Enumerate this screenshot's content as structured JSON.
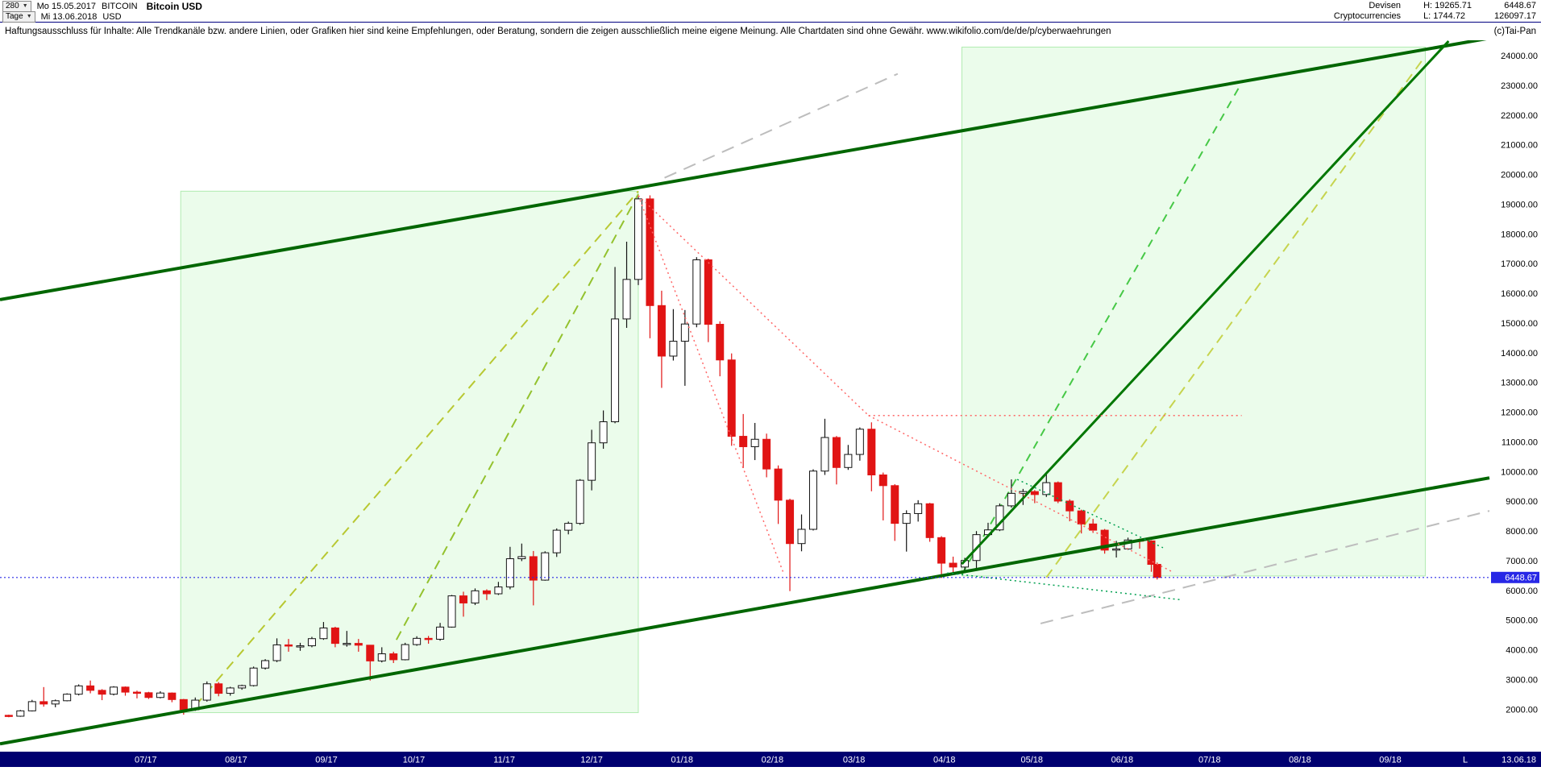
{
  "header": {
    "bars_count": "280",
    "date_from_label": "Mo 15.05.2017",
    "symbol": "BITCOIN",
    "title": "Bitcoin USD",
    "period_label": "Tage",
    "date_to_label": "Mi 13.06.2018",
    "currency": "USD",
    "category_line1": "Devisen",
    "category_line2": "Cryptocurrencies",
    "high_label": "H: 19265.71",
    "low_label": "L: 1744.72",
    "last_price_label": "6448.67",
    "secondary_value": "126097.17"
  },
  "disclaimer": {
    "text": "Haftungsausschluss für Inhalte: Alle Trendkanäle bzw. andere Linien, oder Grafiken hier sind keine Empfehlungen, oder Beratung, sondern die zeigen ausschließlich meine eigene Meinung. Alle Chartdaten sind ohne Gewähr.   www.wikifolio.com/de/de/p/cyberwaehrungen",
    "copyright": "(c)Tai-Pan"
  },
  "chart_data": {
    "type": "candlestick",
    "title": "Bitcoin USD",
    "high": 19265.71,
    "low": 1744.72,
    "last_price": 6448.67,
    "last_price_label": "6448.67",
    "x_axis": {
      "start": "2017-05-12",
      "end": "2018-10-05",
      "end_date_label": "13.06.18",
      "last_marker": "L",
      "month_ticks": [
        {
          "label": "07/17",
          "date": "2017-07-01"
        },
        {
          "label": "08/17",
          "date": "2017-08-01"
        },
        {
          "label": "09/17",
          "date": "2017-09-01"
        },
        {
          "label": "10/17",
          "date": "2017-10-01"
        },
        {
          "label": "11/17",
          "date": "2017-11-01"
        },
        {
          "label": "12/17",
          "date": "2017-12-01"
        },
        {
          "label": "01/18",
          "date": "2018-01-01"
        },
        {
          "label": "02/18",
          "date": "2018-02-01"
        },
        {
          "label": "03/18",
          "date": "2018-03-01"
        },
        {
          "label": "04/18",
          "date": "2018-04-01"
        },
        {
          "label": "05/18",
          "date": "2018-05-01"
        },
        {
          "label": "06/18",
          "date": "2018-06-01"
        },
        {
          "label": "07/18",
          "date": "2018-07-01"
        },
        {
          "label": "08/18",
          "date": "2018-08-01"
        },
        {
          "label": "09/18",
          "date": "2018-09-01"
        }
      ]
    },
    "y_axis": {
      "tick_min": 2000,
      "tick_max": 24000,
      "tick_step": 1000,
      "side": "right",
      "label_decimals": 2
    },
    "colors": {
      "up_fill": "#ffffff",
      "up_stroke": "#141414",
      "down": "#e11414",
      "last_price": "#2828e6",
      "axis_text": "#000000",
      "axis_bar_bg": "#000070",
      "axis_bar_text": "#ffffff",
      "channel": "#006600"
    },
    "overlays": {
      "regions": [
        {
          "name": "uptrend-2017",
          "from_date": "2017-07-13",
          "to_date": "2017-12-17",
          "price_top": 19450,
          "price_bottom": 1900,
          "fill": "rgba(144,238,144,0.18)",
          "stroke": "rgba(120,220,120,0.55)"
        },
        {
          "name": "projection-2018",
          "from_date": "2018-04-07",
          "to_date": "2018-09-13",
          "price_top": 24300,
          "price_bottom": 6500,
          "fill": "rgba(144,238,144,0.18)",
          "stroke": "rgba(120,220,120,0.55)"
        }
      ],
      "lines": [
        {
          "name": "upper-channel",
          "layer": "front",
          "from": [
            "2017-05-12",
            15800
          ],
          "to": [
            "2018-10-05",
            24600
          ],
          "color": "#006600",
          "width": 4,
          "dash": ""
        },
        {
          "name": "lower-channel",
          "layer": "front",
          "from": [
            "2017-05-12",
            850
          ],
          "to": [
            "2018-10-05",
            9800
          ],
          "color": "#006600",
          "width": 4,
          "dash": ""
        },
        {
          "name": "steep-trendline-2018",
          "layer": "front",
          "from": [
            "2018-04-07",
            6900
          ],
          "to": [
            "2018-09-21",
            24500
          ],
          "color": "#007700",
          "width": 3,
          "dash": ""
        },
        {
          "name": "rising-wedge-dashed-1",
          "layer": "back",
          "from": [
            "2017-07-18",
            2130
          ],
          "to": [
            "2017-12-17",
            19450
          ],
          "color": "#b8c832",
          "width": 2,
          "dash": "12 8"
        },
        {
          "name": "rising-wedge-dashed-2",
          "layer": "back",
          "from": [
            "2017-09-25",
            4350
          ],
          "to": [
            "2017-12-17",
            19350
          ],
          "color": "#93c22e",
          "width": 2,
          "dash": "12 8"
        },
        {
          "name": "projection-dashed-green",
          "layer": "back",
          "from": [
            "2018-04-07",
            6550
          ],
          "to": [
            "2018-07-12",
            23100
          ],
          "color": "#46c846",
          "width": 2,
          "dash": "10 8"
        },
        {
          "name": "projection-dashed-yellowgreen",
          "layer": "back",
          "from": [
            "2018-05-06",
            6450
          ],
          "to": [
            "2018-09-13",
            24000
          ],
          "color": "#c6d44e",
          "width": 2,
          "dash": "12 8"
        },
        {
          "name": "gray-dashed-upper",
          "layer": "back",
          "from": [
            "2017-12-26",
            19900
          ],
          "to": [
            "2018-03-16",
            23400
          ],
          "color": "#bdbdbd",
          "width": 2,
          "dash": "16 10"
        },
        {
          "name": "gray-dashed-lower",
          "layer": "back",
          "from": [
            "2018-05-04",
            4900
          ],
          "to": [
            "2018-10-05",
            8690
          ],
          "color": "#bdbdbd",
          "width": 2,
          "dash": "16 10"
        },
        {
          "name": "red-fan-from-top-1",
          "layer": "front",
          "from": [
            "2017-12-17",
            19300
          ],
          "to": [
            "2018-03-06",
            11900
          ],
          "color": "#ff6666",
          "width": 1.5,
          "dash": "2 4"
        },
        {
          "name": "red-fan-from-top-2",
          "layer": "front",
          "from": [
            "2017-12-17",
            19300
          ],
          "to": [
            "2018-02-05",
            6550
          ],
          "color": "#ff6666",
          "width": 1.5,
          "dash": "2 4"
        },
        {
          "name": "red-resistance-horizontal",
          "layer": "front",
          "from": [
            "2018-03-06",
            11900
          ],
          "to": [
            "2018-07-12",
            11900
          ],
          "color": "#ff6666",
          "width": 1.5,
          "dash": "2 4"
        },
        {
          "name": "red-fan-decline",
          "layer": "front",
          "from": [
            "2018-03-06",
            11900
          ],
          "to": [
            "2018-06-18",
            6650
          ],
          "color": "#ff6666",
          "width": 1.5,
          "dash": "2 4"
        },
        {
          "name": "green-dotted-support",
          "layer": "front",
          "from": [
            "2018-04-02",
            6600
          ],
          "to": [
            "2018-06-21",
            5700
          ],
          "color": "#00a050",
          "width": 1.5,
          "dash": "2 4"
        },
        {
          "name": "green-dotted-decline",
          "layer": "front",
          "from": [
            "2018-04-26",
            9750
          ],
          "to": [
            "2018-06-15",
            7450
          ],
          "color": "#00a050",
          "width": 1.5,
          "dash": "2 4"
        }
      ]
    },
    "candles": [
      [
        "2017-05-15",
        1810,
        1830,
        1744.72,
        1780
      ],
      [
        "2017-05-19",
        1780,
        1990,
        1760,
        1960
      ],
      [
        "2017-05-23",
        1960,
        2330,
        1940,
        2270
      ],
      [
        "2017-05-27",
        2270,
        2760,
        2100,
        2190
      ],
      [
        "2017-05-31",
        2190,
        2340,
        2080,
        2300
      ],
      [
        "2017-06-04",
        2300,
        2550,
        2280,
        2520
      ],
      [
        "2017-06-08",
        2520,
        2850,
        2480,
        2800
      ],
      [
        "2017-06-12",
        2800,
        2980,
        2550,
        2650
      ],
      [
        "2017-06-16",
        2650,
        2690,
        2320,
        2520
      ],
      [
        "2017-06-20",
        2520,
        2790,
        2480,
        2760
      ],
      [
        "2017-06-24",
        2760,
        2780,
        2470,
        2590
      ],
      [
        "2017-06-28",
        2590,
        2640,
        2380,
        2570
      ],
      [
        "2017-07-02",
        2570,
        2600,
        2360,
        2410
      ],
      [
        "2017-07-06",
        2410,
        2620,
        2380,
        2560
      ],
      [
        "2017-07-10",
        2560,
        2580,
        2250,
        2340
      ],
      [
        "2017-07-14",
        2340,
        2360,
        1830,
        2000
      ],
      [
        "2017-07-18",
        2000,
        2410,
        1960,
        2320
      ],
      [
        "2017-07-22",
        2320,
        2950,
        2270,
        2870
      ],
      [
        "2017-07-26",
        2870,
        2930,
        2450,
        2550
      ],
      [
        "2017-07-30",
        2550,
        2770,
        2470,
        2730
      ],
      [
        "2017-08-03",
        2730,
        2840,
        2670,
        2810
      ],
      [
        "2017-08-07",
        2810,
        3450,
        2780,
        3400
      ],
      [
        "2017-08-11",
        3400,
        3700,
        3350,
        3650
      ],
      [
        "2017-08-15",
        3650,
        4400,
        3600,
        4180
      ],
      [
        "2017-08-19",
        4180,
        4380,
        3950,
        4150
      ],
      [
        "2017-08-23",
        4150,
        4250,
        3980,
        4150
      ],
      [
        "2017-08-27",
        4150,
        4450,
        4100,
        4390
      ],
      [
        "2017-08-31",
        4390,
        4950,
        4350,
        4750
      ],
      [
        "2017-09-04",
        4750,
        4790,
        4100,
        4230
      ],
      [
        "2017-09-08",
        4230,
        4650,
        4120,
        4230
      ],
      [
        "2017-09-12",
        4230,
        4380,
        3950,
        4170
      ],
      [
        "2017-09-16",
        4170,
        4180,
        2980,
        3640
      ],
      [
        "2017-09-20",
        3640,
        4100,
        3590,
        3880
      ],
      [
        "2017-09-24",
        3880,
        3950,
        3570,
        3680
      ],
      [
        "2017-09-28",
        3680,
        4250,
        3660,
        4190
      ],
      [
        "2017-10-02",
        4190,
        4470,
        4150,
        4400
      ],
      [
        "2017-10-06",
        4400,
        4480,
        4220,
        4370
      ],
      [
        "2017-10-10",
        4370,
        4920,
        4320,
        4780
      ],
      [
        "2017-10-14",
        4780,
        5860,
        4760,
        5830
      ],
      [
        "2017-10-18",
        5830,
        5970,
        5130,
        5590
      ],
      [
        "2017-10-22",
        5590,
        6080,
        5520,
        6000
      ],
      [
        "2017-10-26",
        6000,
        6050,
        5690,
        5900
      ],
      [
        "2017-10-30",
        5900,
        6300,
        5860,
        6130
      ],
      [
        "2017-11-03",
        6130,
        7480,
        6050,
        7080
      ],
      [
        "2017-11-07",
        7080,
        7590,
        7000,
        7150
      ],
      [
        "2017-11-11",
        7150,
        7340,
        5510,
        6360
      ],
      [
        "2017-11-15",
        6360,
        7330,
        6340,
        7280
      ],
      [
        "2017-11-19",
        7280,
        8100,
        7140,
        8040
      ],
      [
        "2017-11-23",
        8040,
        8330,
        7900,
        8270
      ],
      [
        "2017-11-27",
        8270,
        9760,
        8220,
        9720
      ],
      [
        "2017-12-01",
        9720,
        11420,
        9380,
        10980
      ],
      [
        "2017-12-05",
        10980,
        12070,
        10780,
        11690
      ],
      [
        "2017-12-09",
        11690,
        16900,
        11640,
        15150
      ],
      [
        "2017-12-13",
        15150,
        17750,
        14850,
        16480
      ],
      [
        "2017-12-17",
        16480,
        19265.71,
        16290,
        19190
      ],
      [
        "2017-12-21",
        19190,
        19310,
        14500,
        15600
      ],
      [
        "2017-12-25",
        15600,
        16100,
        12830,
        13900
      ],
      [
        "2017-12-29",
        13900,
        15480,
        13750,
        14400
      ],
      [
        "2018-01-02",
        14400,
        15450,
        12900,
        14980
      ],
      [
        "2018-01-06",
        14980,
        17230,
        14870,
        17140
      ],
      [
        "2018-01-10",
        17140,
        17180,
        14370,
        14970
      ],
      [
        "2018-01-14",
        14970,
        15070,
        13220,
        13770
      ],
      [
        "2018-01-18",
        13770,
        13990,
        10880,
        11200
      ],
      [
        "2018-01-22",
        11200,
        11950,
        10130,
        10850
      ],
      [
        "2018-01-26",
        10850,
        11650,
        10400,
        11100
      ],
      [
        "2018-01-30",
        11100,
        11290,
        9820,
        10100
      ],
      [
        "2018-02-03",
        10100,
        10220,
        8250,
        9050
      ],
      [
        "2018-02-07",
        9050,
        9100,
        5990,
        7590
      ],
      [
        "2018-02-11",
        7590,
        8570,
        7330,
        8070
      ],
      [
        "2018-02-15",
        8070,
        10090,
        8030,
        10030
      ],
      [
        "2018-02-19",
        10030,
        11790,
        9900,
        11160
      ],
      [
        "2018-02-23",
        11160,
        11210,
        9580,
        10150
      ],
      [
        "2018-02-27",
        10150,
        10910,
        10070,
        10590
      ],
      [
        "2018-03-03",
        10590,
        11500,
        10380,
        11440
      ],
      [
        "2018-03-07",
        11440,
        11670,
        9350,
        9900
      ],
      [
        "2018-03-11",
        9900,
        9980,
        8370,
        9540
      ],
      [
        "2018-03-15",
        9540,
        9590,
        7680,
        8270
      ],
      [
        "2018-03-19",
        8270,
        8710,
        7320,
        8600
      ],
      [
        "2018-03-23",
        8600,
        9050,
        8330,
        8930
      ],
      [
        "2018-03-27",
        8930,
        8960,
        7650,
        7790
      ],
      [
        "2018-03-31",
        7790,
        7840,
        6430,
        6930
      ],
      [
        "2018-04-04",
        6930,
        7150,
        6550,
        6800
      ],
      [
        "2018-04-08",
        6800,
        7110,
        6600,
        7020
      ],
      [
        "2018-04-12",
        7020,
        8010,
        6760,
        7890
      ],
      [
        "2018-04-16",
        7890,
        8290,
        7820,
        8050
      ],
      [
        "2018-04-20",
        8050,
        8940,
        8010,
        8860
      ],
      [
        "2018-04-24",
        8860,
        9750,
        8800,
        9280
      ],
      [
        "2018-04-28",
        9280,
        9430,
        8890,
        9340
      ],
      [
        "2018-05-02",
        9340,
        9390,
        8950,
        9240
      ],
      [
        "2018-05-06",
        9240,
        9990,
        9160,
        9640
      ],
      [
        "2018-05-10",
        9640,
        9680,
        8950,
        9020
      ],
      [
        "2018-05-14",
        9020,
        9080,
        8340,
        8690
      ],
      [
        "2018-05-18",
        8690,
        8730,
        7930,
        8250
      ],
      [
        "2018-05-22",
        8250,
        8420,
        7950,
        8040
      ],
      [
        "2018-05-26",
        8040,
        8080,
        7250,
        7370
      ],
      [
        "2018-05-30",
        7370,
        7680,
        7120,
        7410
      ],
      [
        "2018-06-03",
        7410,
        7790,
        7380,
        7710
      ],
      [
        "2018-06-07",
        7710,
        7760,
        7420,
        7680
      ],
      [
        "2018-06-11",
        7680,
        7700,
        6640,
        6890
      ],
      [
        "2018-06-13",
        6890,
        6950,
        6380,
        6448.67
      ]
    ]
  }
}
